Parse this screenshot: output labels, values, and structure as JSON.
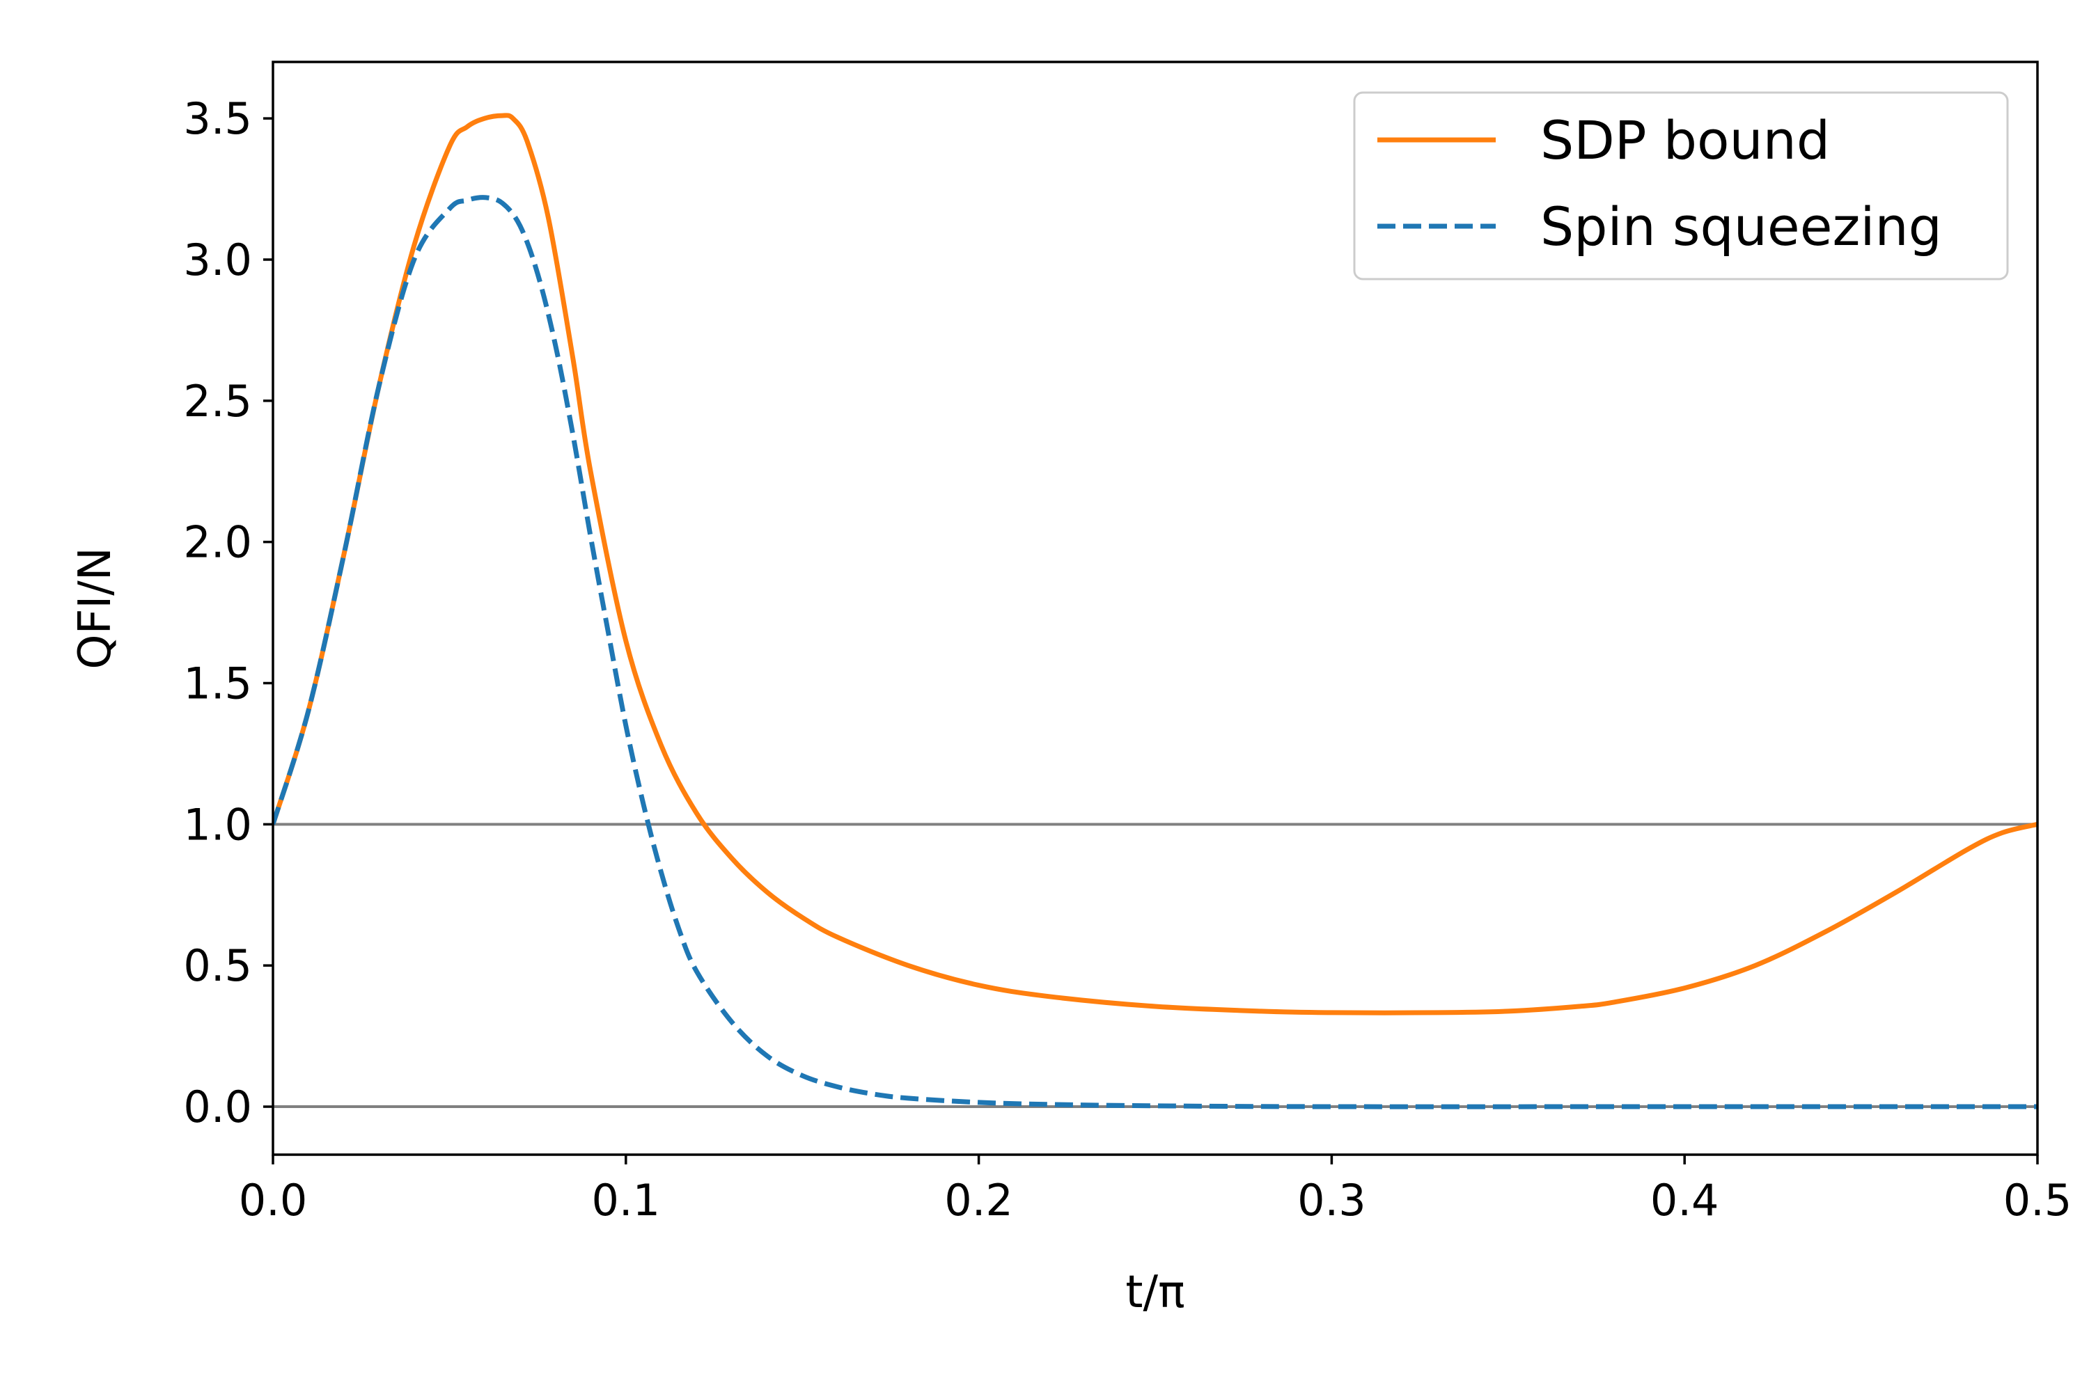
{
  "chart_data": {
    "type": "line",
    "xlabel": "t/π",
    "ylabel": "QFI/N",
    "xlim": [
      0.0,
      0.5
    ],
    "ylim": [
      -0.17,
      3.7
    ],
    "x_ticks": [
      "0.0",
      "0.1",
      "0.2",
      "0.3",
      "0.4",
      "0.5"
    ],
    "x_tick_values": [
      0.0,
      0.1,
      0.2,
      0.3,
      0.4,
      0.5
    ],
    "y_ticks": [
      "0.0",
      "0.5",
      "1.0",
      "1.5",
      "2.0",
      "2.5",
      "3.0",
      "3.5"
    ],
    "y_tick_values": [
      0.0,
      0.5,
      1.0,
      1.5,
      2.0,
      2.5,
      3.0,
      3.5
    ],
    "grid": false,
    "legend_position": "top-right",
    "reference_lines": [
      0.0,
      1.0
    ],
    "colors": {
      "sdp": "#ff7f0e",
      "squeezing": "#1f77b4",
      "reference": "#808080"
    },
    "series": [
      {
        "name": "SDP bound",
        "style": "solid",
        "x": [
          0.0,
          0.01,
          0.02,
          0.03,
          0.04,
          0.05,
          0.055,
          0.06,
          0.065,
          0.068,
          0.072,
          0.078,
          0.085,
          0.09,
          0.1,
          0.11,
          0.12,
          0.13,
          0.14,
          0.15,
          0.16,
          0.18,
          0.2,
          0.22,
          0.25,
          0.28,
          0.3,
          0.33,
          0.35,
          0.37,
          0.38,
          0.4,
          0.42,
          0.44,
          0.46,
          0.48,
          0.49,
          0.5
        ],
        "values": [
          1.0,
          1.4,
          1.95,
          2.55,
          3.05,
          3.4,
          3.47,
          3.5,
          3.51,
          3.5,
          3.42,
          3.15,
          2.65,
          2.25,
          1.65,
          1.28,
          1.04,
          0.88,
          0.76,
          0.67,
          0.6,
          0.5,
          0.43,
          0.39,
          0.355,
          0.338,
          0.333,
          0.333,
          0.338,
          0.355,
          0.37,
          0.42,
          0.5,
          0.62,
          0.76,
          0.91,
          0.97,
          1.0
        ]
      },
      {
        "name": "Spin squeezing",
        "style": "dashed",
        "x": [
          0.0,
          0.01,
          0.02,
          0.03,
          0.04,
          0.05,
          0.055,
          0.06,
          0.065,
          0.07,
          0.075,
          0.08,
          0.085,
          0.09,
          0.095,
          0.1,
          0.105,
          0.11,
          0.115,
          0.12,
          0.13,
          0.14,
          0.15,
          0.16,
          0.17,
          0.18,
          0.2,
          0.22,
          0.25,
          0.3,
          0.4,
          0.5
        ],
        "values": [
          1.0,
          1.4,
          1.95,
          2.55,
          3.0,
          3.18,
          3.21,
          3.22,
          3.2,
          3.12,
          2.95,
          2.7,
          2.38,
          2.02,
          1.68,
          1.35,
          1.07,
          0.83,
          0.63,
          0.48,
          0.3,
          0.18,
          0.11,
          0.07,
          0.045,
          0.03,
          0.015,
          0.008,
          0.003,
          0.0,
          0.0,
          0.0
        ]
      }
    ]
  }
}
